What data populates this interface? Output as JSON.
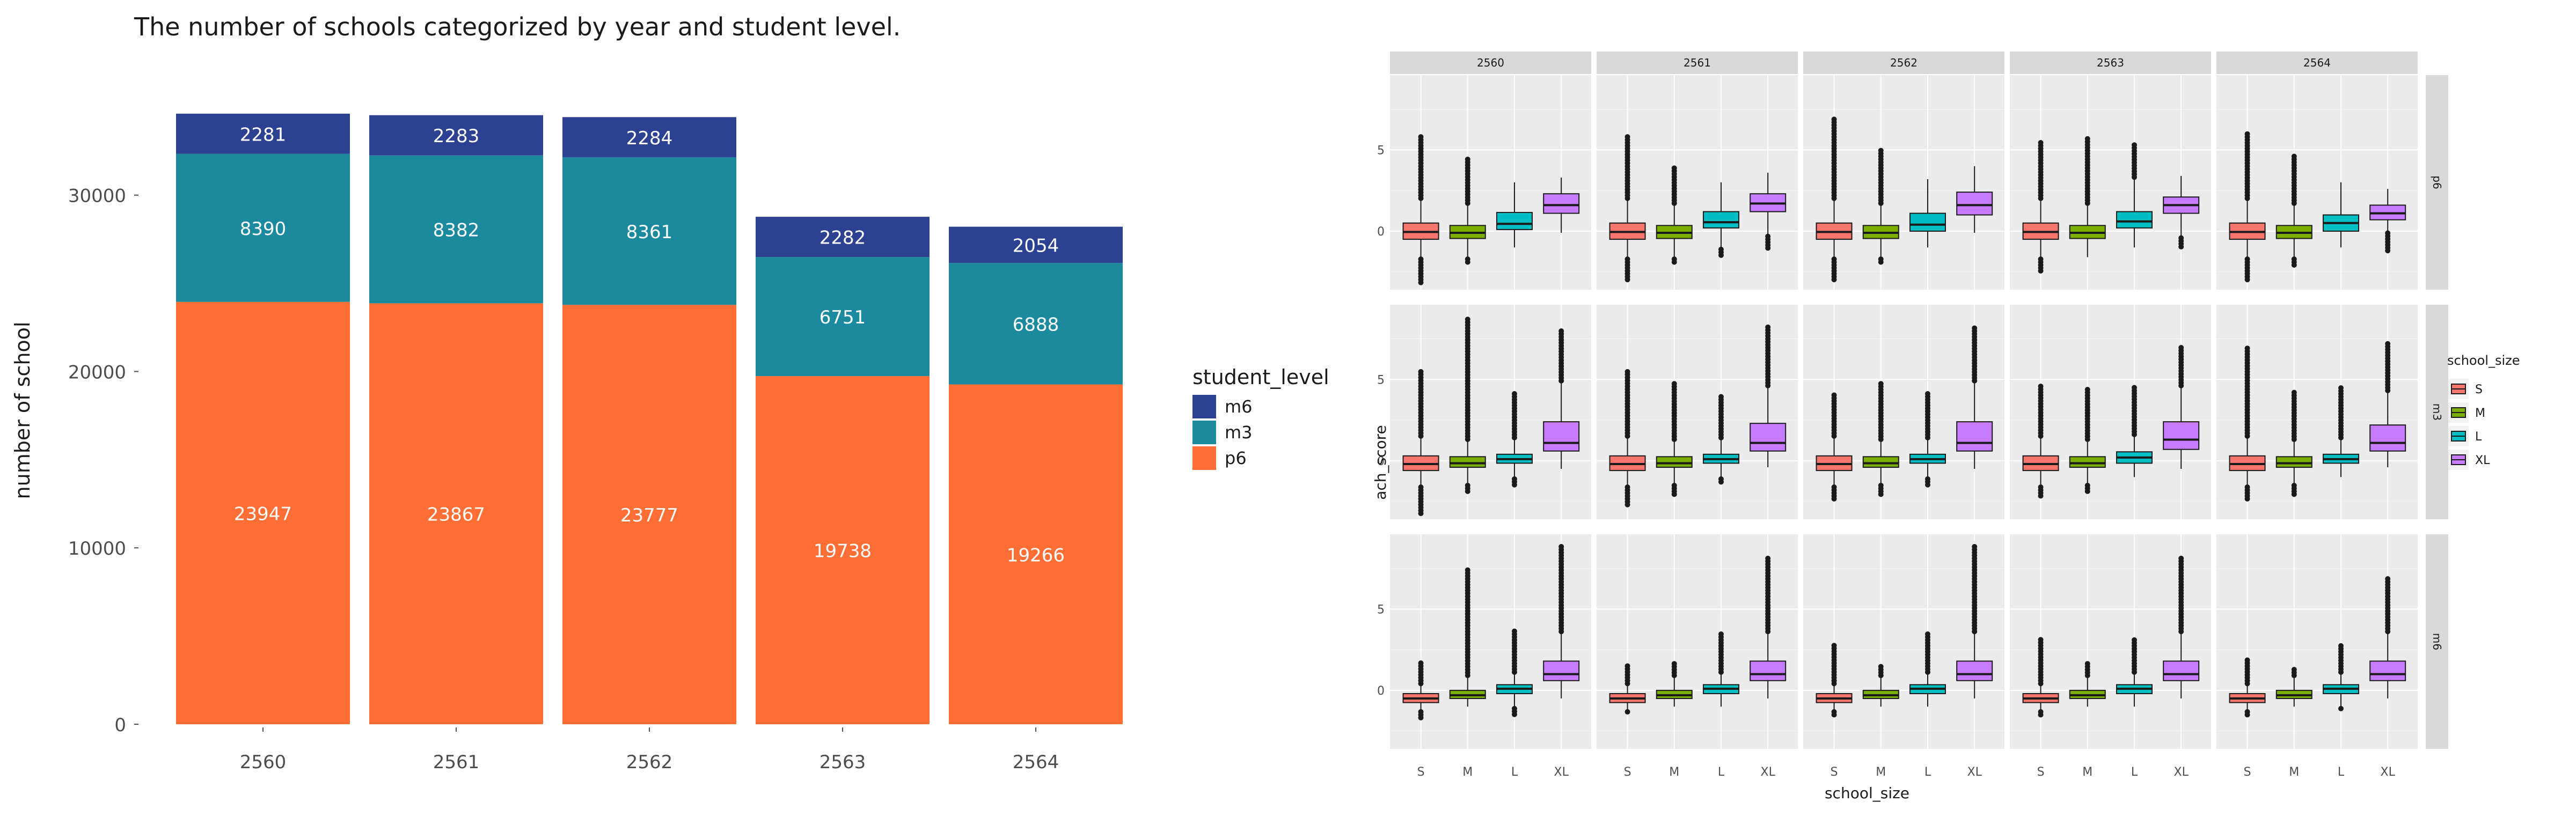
{
  "chart_data": [
    {
      "type": "bar",
      "stacked": true,
      "title": "The number of schools categorized by year and student level.",
      "xlabel": "",
      "ylabel": "number of school",
      "categories": [
        "2560",
        "2561",
        "2562",
        "2563",
        "2564"
      ],
      "ylim": [
        0,
        36500
      ],
      "yticks": [
        0,
        10000,
        20000,
        30000
      ],
      "grid": false,
      "legend": {
        "title": "student_level",
        "placement": "right",
        "entries": [
          "m6",
          "m3",
          "p6"
        ]
      },
      "series": [
        {
          "name": "p6",
          "color": "#FF6E35",
          "values": [
            23947,
            23867,
            23777,
            19738,
            19266
          ]
        },
        {
          "name": "m3",
          "color": "#1B8A9E",
          "values": [
            8390,
            8382,
            8361,
            6751,
            6888
          ]
        },
        {
          "name": "m6",
          "color": "#2D4192",
          "values": [
            2281,
            2283,
            2284,
            2282,
            2054
          ]
        }
      ]
    },
    {
      "type": "box",
      "xlabel": "school_size",
      "ylabel": "ach_score",
      "categories": [
        "S",
        "M",
        "L",
        "XL"
      ],
      "yticks": [
        0,
        5
      ],
      "ylim": [
        -3.6,
        9.6
      ],
      "columns": [
        "2560",
        "2561",
        "2562",
        "2563",
        "2564"
      ],
      "rows": [
        "p6",
        "m3",
        "m6"
      ],
      "legend": {
        "title": "school_size",
        "placement": "right",
        "entries": [
          {
            "name": "S",
            "color": "#F8766D"
          },
          {
            "name": "M",
            "color": "#7CAE00"
          },
          {
            "name": "L",
            "color": "#00BFC4"
          },
          {
            "name": "XL",
            "color": "#C77CFF"
          }
        ]
      },
      "stats": {
        "p6": {
          "2560": {
            "S": [
              -1.6,
              -0.5,
              -0.05,
              0.5,
              1.9,
              5.8,
              -3.2
            ],
            "M": [
              -1.6,
              -0.45,
              -0.1,
              0.35,
              1.6,
              4.5,
              -1.9
            ],
            "L": [
              -1.0,
              0.1,
              0.45,
              1.15,
              3.0,
              3.0,
              -1.0
            ],
            "XL": [
              -0.1,
              1.1,
              1.6,
              2.3,
              3.3,
              3.3,
              -0.1
            ]
          },
          "2561": {
            "S": [
              -1.6,
              -0.5,
              -0.05,
              0.5,
              1.9,
              5.9,
              -3.0
            ],
            "M": [
              -1.6,
              -0.45,
              -0.1,
              0.35,
              1.6,
              3.9,
              -2.0
            ],
            "L": [
              -1.0,
              0.2,
              0.55,
              1.2,
              3.0,
              3.0,
              -1.6
            ],
            "XL": [
              -0.2,
              1.2,
              1.7,
              2.3,
              3.6,
              3.6,
              -1.2
            ]
          },
          "2562": {
            "S": [
              -1.6,
              -0.5,
              -0.05,
              0.5,
              1.9,
              7.0,
              -3.0
            ],
            "M": [
              -1.6,
              -0.45,
              -0.1,
              0.35,
              1.6,
              5.0,
              -2.0
            ],
            "L": [
              -1.0,
              0.0,
              0.4,
              1.1,
              3.2,
              3.2,
              -1.0
            ],
            "XL": [
              -0.1,
              1.0,
              1.6,
              2.4,
              4.0,
              4.0,
              -0.1
            ]
          },
          "2563": {
            "S": [
              -1.6,
              -0.5,
              -0.05,
              0.5,
              1.9,
              5.5,
              -2.6
            ],
            "M": [
              -1.6,
              -0.45,
              -0.1,
              0.35,
              1.6,
              5.8,
              -1.6
            ],
            "L": [
              -1.0,
              0.2,
              0.6,
              1.2,
              3.2,
              5.3,
              -1.0
            ],
            "XL": [
              -0.3,
              1.1,
              1.6,
              2.1,
              3.4,
              3.4,
              -1.0
            ]
          },
          "2564": {
            "S": [
              -1.6,
              -0.5,
              -0.05,
              0.5,
              1.9,
              6.1,
              -3.1
            ],
            "M": [
              -1.6,
              -0.45,
              -0.1,
              0.35,
              1.6,
              4.6,
              -2.2
            ],
            "L": [
              -1.0,
              0.0,
              0.5,
              1.0,
              3.0,
              3.0,
              -1.0
            ],
            "XL": [
              0.0,
              0.7,
              1.1,
              1.6,
              2.6,
              2.6,
              -1.2
            ]
          }
        },
        "m3": {
          "2560": {
            "S": [
              -1.5,
              -0.6,
              -0.2,
              0.3,
              1.4,
              5.5,
              -3.3
            ],
            "M": [
              -1.4,
              -0.4,
              -0.15,
              0.25,
              1.2,
              8.8,
              -2.0
            ],
            "L": [
              -1.0,
              -0.15,
              0.1,
              0.4,
              1.3,
              4.2,
              -1.6
            ],
            "XL": [
              -0.5,
              0.6,
              1.1,
              2.4,
              4.8,
              8.0,
              -0.5
            ]
          },
          "2561": {
            "S": [
              -1.5,
              -0.6,
              -0.2,
              0.3,
              1.4,
              5.6,
              -2.8
            ],
            "M": [
              -1.4,
              -0.4,
              -0.15,
              0.25,
              1.2,
              4.9,
              -2.2
            ],
            "L": [
              -1.0,
              -0.15,
              0.1,
              0.4,
              1.3,
              4.0,
              -1.3
            ],
            "XL": [
              -0.4,
              0.6,
              1.1,
              2.3,
              4.5,
              8.3,
              -0.4
            ]
          },
          "2562": {
            "S": [
              -1.5,
              -0.6,
              -0.2,
              0.3,
              1.4,
              4.2,
              -2.5
            ],
            "M": [
              -1.4,
              -0.4,
              -0.15,
              0.25,
              1.2,
              4.8,
              -2.2
            ],
            "L": [
              -1.0,
              -0.15,
              0.1,
              0.4,
              1.3,
              4.2,
              -1.6
            ],
            "XL": [
              -0.5,
              0.6,
              1.1,
              2.4,
              4.8,
              8.2,
              -0.5
            ]
          },
          "2563": {
            "S": [
              -1.5,
              -0.6,
              -0.2,
              0.3,
              1.4,
              4.6,
              -2.3
            ],
            "M": [
              -1.4,
              -0.4,
              -0.15,
              0.25,
              1.2,
              4.4,
              -1.9
            ],
            "L": [
              -1.0,
              -0.15,
              0.2,
              0.55,
              1.5,
              4.5,
              -1.0
            ],
            "XL": [
              -0.5,
              0.7,
              1.3,
              2.4,
              4.5,
              7.1,
              -0.5
            ]
          },
          "2564": {
            "S": [
              -1.5,
              -0.6,
              -0.2,
              0.3,
              1.4,
              7.0,
              -2.4
            ],
            "M": [
              -1.4,
              -0.4,
              -0.15,
              0.25,
              1.2,
              4.2,
              -2.2
            ],
            "L": [
              -1.0,
              -0.15,
              0.1,
              0.4,
              1.3,
              4.5,
              -1.0
            ],
            "XL": [
              -0.4,
              0.6,
              1.1,
              2.2,
              4.2,
              7.2,
              -0.4
            ]
          }
        },
        "m6": {
          "2560": {
            "S": [
              -1.2,
              -0.75,
              -0.5,
              -0.2,
              0.3,
              1.8,
              -1.8
            ],
            "M": [
              -1.0,
              -0.5,
              -0.3,
              0.0,
              0.8,
              7.5,
              -1.0
            ],
            "L": [
              -1.0,
              -0.2,
              0.1,
              0.35,
              1.0,
              3.8,
              -1.5
            ],
            "XL": [
              -0.5,
              0.6,
              1.0,
              1.8,
              3.5,
              9.0,
              -0.5
            ]
          },
          "2561": {
            "S": [
              -1.2,
              -0.75,
              -0.5,
              -0.2,
              0.3,
              1.5,
              -1.4
            ],
            "M": [
              -1.0,
              -0.5,
              -0.3,
              0.0,
              0.8,
              1.8,
              -1.0
            ],
            "L": [
              -1.0,
              -0.2,
              0.1,
              0.35,
              1.0,
              3.5,
              -1.0
            ],
            "XL": [
              -0.5,
              0.6,
              1.0,
              1.8,
              3.5,
              8.2,
              -0.5
            ]
          },
          "2562": {
            "S": [
              -1.2,
              -0.75,
              -0.5,
              -0.2,
              0.3,
              2.8,
              -1.6
            ],
            "M": [
              -1.0,
              -0.5,
              -0.3,
              0.0,
              0.8,
              1.5,
              -1.0
            ],
            "L": [
              -1.0,
              -0.2,
              0.1,
              0.35,
              1.0,
              3.5,
              -1.0
            ],
            "XL": [
              -0.5,
              0.6,
              1.0,
              1.8,
              3.5,
              9.0,
              -0.5
            ]
          },
          "2563": {
            "S": [
              -1.2,
              -0.75,
              -0.5,
              -0.2,
              0.3,
              3.2,
              -1.6
            ],
            "M": [
              -1.0,
              -0.5,
              -0.3,
              0.0,
              0.8,
              1.8,
              -1.0
            ],
            "L": [
              -1.0,
              -0.2,
              0.1,
              0.35,
              1.0,
              3.2,
              -1.0
            ],
            "XL": [
              -0.5,
              0.6,
              1.0,
              1.8,
              3.5,
              8.2,
              -0.5
            ]
          },
          "2564": {
            "S": [
              -1.2,
              -0.75,
              -0.5,
              -0.2,
              0.3,
              1.9,
              -1.6
            ],
            "M": [
              -1.0,
              -0.5,
              -0.3,
              0.0,
              0.8,
              1.3,
              -1.0
            ],
            "L": [
              -1.0,
              -0.2,
              0.1,
              0.35,
              1.0,
              2.9,
              -1.2
            ],
            "XL": [
              -0.5,
              0.6,
              1.0,
              1.8,
              3.5,
              6.9,
              -0.5
            ]
          }
        }
      }
    }
  ]
}
